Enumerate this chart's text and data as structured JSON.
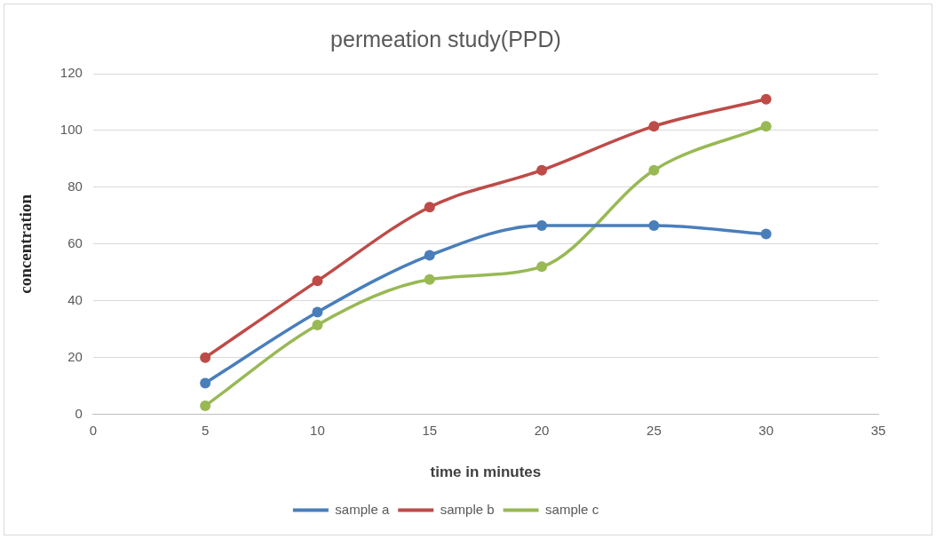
{
  "chart_data": {
    "type": "line",
    "title": "permeation study(PPD)",
    "xlabel": "time in minutes",
    "ylabel": "concentration",
    "x": [
      5,
      10,
      15,
      20,
      25,
      30
    ],
    "series": [
      {
        "name": "sample a",
        "color": "#4a7ebb",
        "values": [
          11,
          36,
          56,
          66.5,
          66.5,
          63.5
        ]
      },
      {
        "name": "sample b",
        "color": "#be4b48",
        "values": [
          20,
          47,
          73,
          86,
          101.5,
          111
        ]
      },
      {
        "name": "sample c",
        "color": "#98b954",
        "values": [
          3,
          31.5,
          47.5,
          52,
          86,
          101.5
        ]
      }
    ],
    "xlim": [
      0,
      35
    ],
    "xticks": [
      0,
      5,
      10,
      15,
      20,
      25,
      30,
      35
    ],
    "ylim": [
      0,
      120
    ],
    "yticks": [
      0,
      20,
      40,
      60,
      80,
      100,
      120
    ],
    "grid": "y",
    "legend": "bottom",
    "marker": "circle",
    "line_style": "solid"
  }
}
